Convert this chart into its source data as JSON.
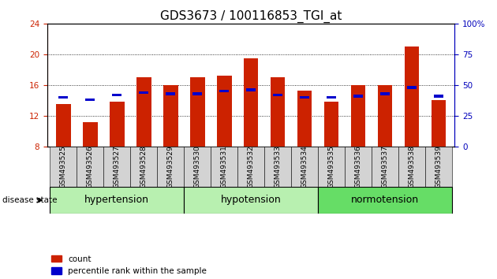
{
  "title": "GDS3673 / 100116853_TGI_at",
  "samples": [
    "GSM493525",
    "GSM493526",
    "GSM493527",
    "GSM493528",
    "GSM493529",
    "GSM493530",
    "GSM493531",
    "GSM493532",
    "GSM493533",
    "GSM493534",
    "GSM493535",
    "GSM493536",
    "GSM493537",
    "GSM493538",
    "GSM493539"
  ],
  "count_values": [
    13.5,
    11.2,
    13.8,
    17.0,
    16.0,
    17.0,
    17.2,
    19.5,
    17.0,
    15.3,
    13.8,
    16.0,
    16.0,
    21.0,
    14.0
  ],
  "percentile_values": [
    40,
    38,
    42,
    44,
    43,
    43,
    45,
    46,
    42,
    40,
    40,
    41,
    43,
    48,
    41
  ],
  "ylim_left": [
    8,
    24
  ],
  "ylim_right": [
    0,
    100
  ],
  "yticks_left": [
    8,
    12,
    16,
    20,
    24
  ],
  "yticks_right": [
    0,
    25,
    50,
    75,
    100
  ],
  "bar_color": "#cc2200",
  "percentile_color": "#0000cc",
  "group_labels": [
    "hypertension",
    "hypotension",
    "normotension"
  ],
  "group_ranges": [
    [
      0,
      5
    ],
    [
      5,
      10
    ],
    [
      10,
      15
    ]
  ],
  "group_colors_light": [
    "#c8f5c0",
    "#c8f5c0",
    "#77dd77"
  ],
  "disease_state_label": "disease state",
  "legend_count": "count",
  "legend_percentile": "percentile rank within the sample",
  "bar_width": 0.55,
  "base_value": 8,
  "grid_color": "#000000",
  "background_color": "#ffffff",
  "left_axis_color": "#cc2200",
  "right_axis_color": "#0000bb",
  "title_fontsize": 11,
  "tick_fontsize": 7.5,
  "sample_fontsize": 6.5,
  "group_fontsize": 9
}
